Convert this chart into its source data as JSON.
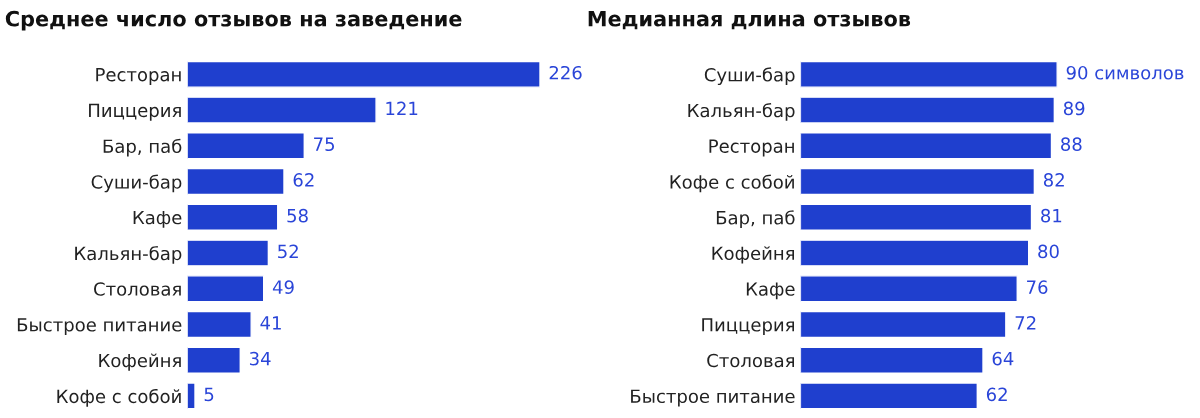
{
  "chart_data": [
    {
      "type": "bar",
      "orientation": "horizontal",
      "title": "Среднее число отзывов на заведение",
      "tick_labels": "y",
      "data_labels": true,
      "categories": [
        "Ресторан",
        "Пиццерия",
        "Бар, паб",
        "Суши-бар",
        "Кафе",
        "Кальян-бар",
        "Столовая",
        "Быстрое питание",
        "Кофейня",
        "Кофе с собой"
      ],
      "series": [
        {
          "color": "#1f3fce",
          "values": [
            226,
            121,
            75,
            62,
            58,
            52,
            49,
            41,
            34,
            5
          ]
        }
      ]
    },
    {
      "type": "bar",
      "orientation": "horizontal",
      "title": "Медианная длина отзывов",
      "tick_labels": "y",
      "categories": [
        "Суши-бар",
        "Кальян-бар",
        "Ресторан",
        "Кофе с собой",
        "Бар, паб",
        "Кофейня",
        "Кафе",
        "Пиццерия",
        "Столовая",
        "Быстрое питание"
      ],
      "series": [
        {
          "color": "#1f3fce",
          "values": [
            90,
            89,
            88,
            82,
            81,
            80,
            76,
            72,
            64,
            62
          ],
          "value_labels": [
            "90 символов",
            "89",
            "88",
            "82",
            "81",
            "80",
            "76",
            "72",
            "64",
            "62"
          ]
        }
      ]
    }
  ]
}
